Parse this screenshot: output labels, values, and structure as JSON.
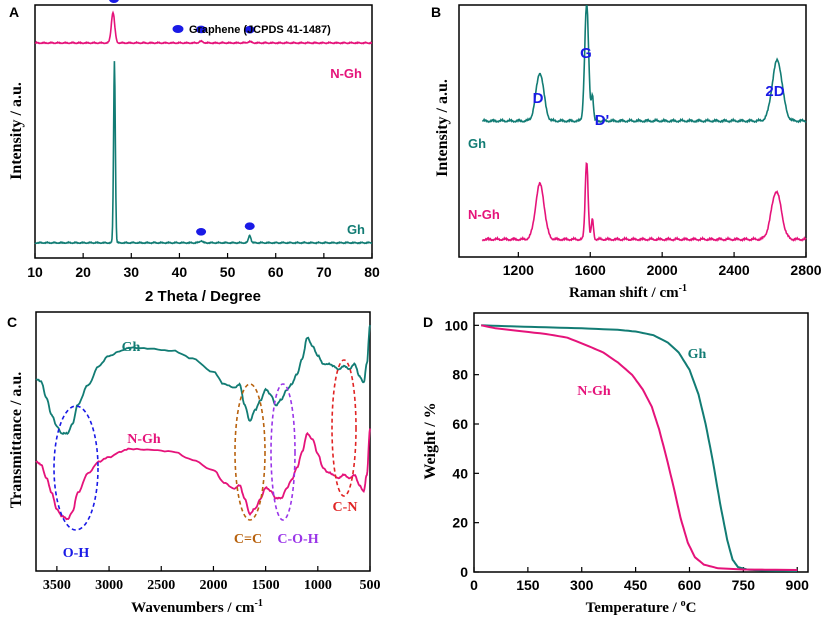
{
  "colors": {
    "teal": "#127C74",
    "pink": "#E5137A",
    "blue": "#1A1AE6",
    "brown": "#B8620E",
    "purple": "#9A35E8",
    "red": "#E02424"
  },
  "chart_data": [
    {
      "panel": "A",
      "type": "line",
      "xlabel": "2 Theta / Degree",
      "ylabel": "Intensity / a.u.",
      "xlim": [
        10,
        80
      ],
      "xticks": [
        "10",
        "20",
        "30",
        "40",
        "50",
        "60",
        "70",
        "80"
      ],
      "legend": {
        "label": "Graphene (JCPDS 41-1487)",
        "marker": "filled-ellipse",
        "placement": "top-right"
      },
      "peak_markers": [
        26.4,
        44.5,
        54.6
      ],
      "series": [
        {
          "name": "N-Gh",
          "color": "pink",
          "baseline": 0.85,
          "peaks": [
            [
              26.2,
              0.12,
              0.35
            ],
            [
              44.5,
              0.006,
              0.4
            ],
            [
              54.6,
              0.005,
              0.4
            ]
          ]
        },
        {
          "name": "Gh",
          "color": "teal",
          "baseline": 0.06,
          "peaks": [
            [
              26.5,
              0.72,
              0.18
            ],
            [
              44.5,
              0.008,
              0.3
            ],
            [
              54.6,
              0.03,
              0.25
            ]
          ]
        }
      ]
    },
    {
      "panel": "B",
      "type": "line",
      "xlabel": "Raman shift / cm",
      "xlabel_sup": "-1",
      "ylabel": "Intensity / a.u.",
      "xlim": [
        870,
        2800
      ],
      "xticks": [
        "1200",
        "1600",
        "2000",
        "2400",
        "2800"
      ],
      "peak_labels": [
        "D",
        "G",
        "D'",
        "2D"
      ],
      "series": [
        {
          "name": "Gh",
          "color": "teal",
          "baseline": 0.54,
          "peaks": [
            [
              1320,
              0.19,
              22
            ],
            [
              1580,
              0.46,
              11
            ],
            [
              1612,
              0.1,
              6
            ],
            [
              2640,
              0.24,
              28
            ]
          ]
        },
        {
          "name": "N-Gh",
          "color": "pink",
          "baseline": 0.07,
          "peaks": [
            [
              1320,
              0.22,
              24
            ],
            [
              1580,
              0.31,
              8
            ],
            [
              1612,
              0.08,
              6
            ],
            [
              2635,
              0.19,
              28
            ]
          ]
        }
      ]
    },
    {
      "panel": "C",
      "type": "line",
      "xlabel": "Wavenumbers / cm",
      "xlabel_sup": "-1",
      "ylabel": "Transmittance / a.u.",
      "xlim": [
        3700,
        500
      ],
      "xticks": [
        "3500",
        "3000",
        "2500",
        "2000",
        "1500",
        "1000",
        "500"
      ],
      "annotations": [
        "O-H",
        "C=C",
        "C-O-H",
        "C-N"
      ],
      "series": [
        {
          "name": "Gh",
          "color": "teal",
          "points": [
            [
              3700,
              0.74
            ],
            [
              3650,
              0.73
            ],
            [
              3600,
              0.67
            ],
            [
              3550,
              0.6
            ],
            [
              3500,
              0.56
            ],
            [
              3450,
              0.53
            ],
            [
              3400,
              0.53
            ],
            [
              3350,
              0.57
            ],
            [
              3300,
              0.64
            ],
            [
              3200,
              0.72
            ],
            [
              3100,
              0.79
            ],
            [
              3000,
              0.83
            ],
            [
              2900,
              0.85
            ],
            [
              2800,
              0.86
            ],
            [
              2600,
              0.86
            ],
            [
              2400,
              0.85
            ],
            [
              2200,
              0.82
            ],
            [
              2000,
              0.77
            ],
            [
              1900,
              0.72
            ],
            [
              1800,
              0.71
            ],
            [
              1750,
              0.72
            ],
            [
              1700,
              0.64
            ],
            [
              1650,
              0.58
            ],
            [
              1600,
              0.62
            ],
            [
              1550,
              0.66
            ],
            [
              1500,
              0.7
            ],
            [
              1450,
              0.68
            ],
            [
              1400,
              0.64
            ],
            [
              1350,
              0.66
            ],
            [
              1300,
              0.7
            ],
            [
              1250,
              0.72
            ],
            [
              1200,
              0.76
            ],
            [
              1150,
              0.82
            ],
            [
              1100,
              0.9
            ],
            [
              1050,
              0.87
            ],
            [
              1000,
              0.83
            ],
            [
              950,
              0.8
            ],
            [
              900,
              0.8
            ],
            [
              850,
              0.79
            ],
            [
              800,
              0.78
            ],
            [
              750,
              0.79
            ],
            [
              700,
              0.78
            ],
            [
              650,
              0.8
            ],
            [
              600,
              0.75
            ],
            [
              560,
              0.73
            ],
            [
              530,
              0.8
            ],
            [
              500,
              0.95
            ]
          ]
        },
        {
          "name": "N-Gh",
          "color": "pink",
          "points": [
            [
              3700,
              0.42
            ],
            [
              3650,
              0.41
            ],
            [
              3600,
              0.36
            ],
            [
              3550,
              0.3
            ],
            [
              3500,
              0.24
            ],
            [
              3450,
              0.21
            ],
            [
              3400,
              0.2
            ],
            [
              3350,
              0.23
            ],
            [
              3300,
              0.3
            ],
            [
              3200,
              0.38
            ],
            [
              3100,
              0.42
            ],
            [
              3000,
              0.44
            ],
            [
              2900,
              0.46
            ],
            [
              2800,
              0.47
            ],
            [
              2600,
              0.47
            ],
            [
              2400,
              0.46
            ],
            [
              2200,
              0.43
            ],
            [
              2000,
              0.39
            ],
            [
              1900,
              0.34
            ],
            [
              1800,
              0.32
            ],
            [
              1750,
              0.33
            ],
            [
              1700,
              0.28
            ],
            [
              1650,
              0.22
            ],
            [
              1600,
              0.24
            ],
            [
              1550,
              0.28
            ],
            [
              1500,
              0.32
            ],
            [
              1450,
              0.31
            ],
            [
              1400,
              0.28
            ],
            [
              1350,
              0.28
            ],
            [
              1300,
              0.32
            ],
            [
              1250,
              0.35
            ],
            [
              1200,
              0.4
            ],
            [
              1150,
              0.46
            ],
            [
              1100,
              0.53
            ],
            [
              1050,
              0.51
            ],
            [
              1000,
              0.45
            ],
            [
              950,
              0.4
            ],
            [
              900,
              0.38
            ],
            [
              850,
              0.37
            ],
            [
              800,
              0.36
            ],
            [
              750,
              0.37
            ],
            [
              700,
              0.36
            ],
            [
              650,
              0.37
            ],
            [
              600,
              0.33
            ],
            [
              560,
              0.31
            ],
            [
              530,
              0.37
            ],
            [
              500,
              0.55
            ]
          ]
        }
      ]
    },
    {
      "panel": "D",
      "type": "line",
      "xlabel": "Temperature / ",
      "xlabel_sup": "o",
      "xlabel_unit": "C",
      "ylabel": "Weight / %",
      "xlim": [
        0,
        930
      ],
      "ylim": [
        0,
        105
      ],
      "xticks": [
        "0",
        "150",
        "300",
        "450",
        "600",
        "750",
        "900"
      ],
      "yticks": [
        "0",
        "20",
        "40",
        "60",
        "80",
        "100"
      ],
      "series": [
        {
          "name": "Gh",
          "color": "teal",
          "points": [
            [
              20,
              100
            ],
            [
              100,
              99.6
            ],
            [
              200,
              99.2
            ],
            [
              300,
              98.8
            ],
            [
              400,
              98.2
            ],
            [
              450,
              97.5
            ],
            [
              500,
              96
            ],
            [
              540,
              93
            ],
            [
              570,
              89
            ],
            [
              600,
              82
            ],
            [
              625,
              72
            ],
            [
              645,
              60
            ],
            [
              665,
              45
            ],
            [
              685,
              28
            ],
            [
              705,
              13
            ],
            [
              720,
              5
            ],
            [
              735,
              2
            ],
            [
              760,
              1
            ],
            [
              800,
              0.6
            ],
            [
              900,
              0.4
            ]
          ]
        },
        {
          "name": "N-Gh",
          "color": "pink",
          "points": [
            [
              20,
              100
            ],
            [
              60,
              98.8
            ],
            [
              120,
              97.8
            ],
            [
              200,
              96.5
            ],
            [
              260,
              95
            ],
            [
              320,
              91.5
            ],
            [
              360,
              89
            ],
            [
              400,
              85
            ],
            [
              440,
              80
            ],
            [
              470,
              74
            ],
            [
              495,
              67
            ],
            [
              515,
              58
            ],
            [
              535,
              47
            ],
            [
              555,
              35
            ],
            [
              575,
              22
            ],
            [
              595,
              12
            ],
            [
              615,
              6
            ],
            [
              640,
              3
            ],
            [
              680,
              1.5
            ],
            [
              750,
              1
            ],
            [
              900,
              0.8
            ]
          ]
        }
      ]
    }
  ]
}
